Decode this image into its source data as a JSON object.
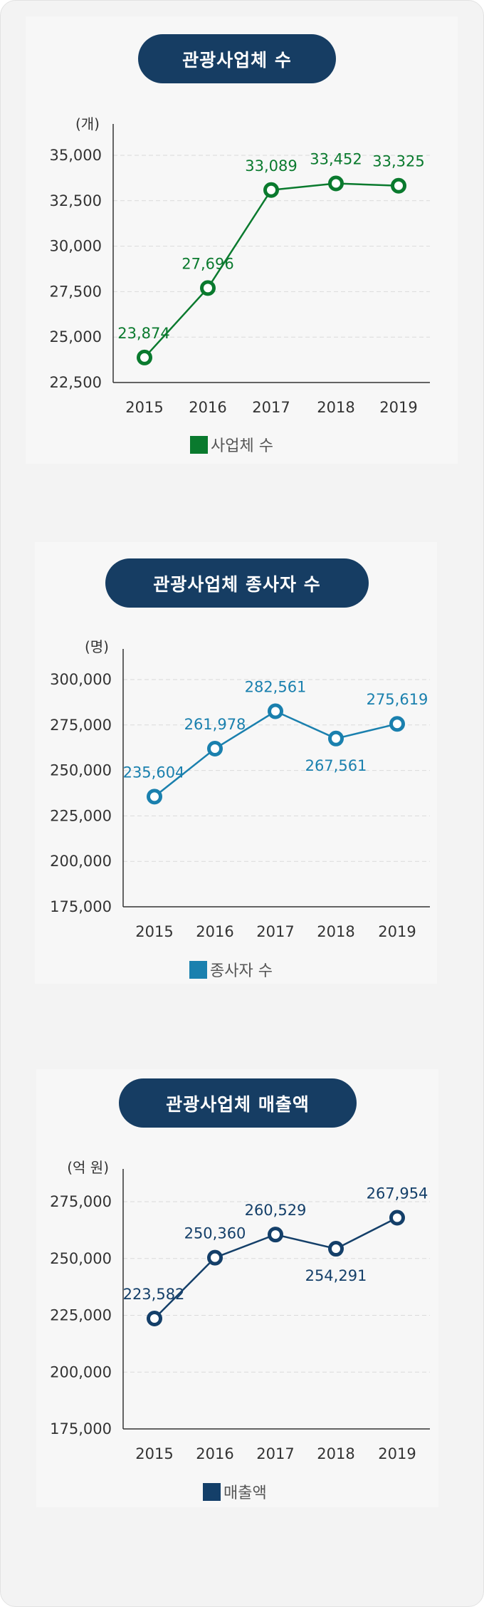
{
  "chart_data": [
    {
      "type": "line",
      "title": "관광사업체 수",
      "unit": "(개)",
      "categories": [
        "2015",
        "2016",
        "2017",
        "2018",
        "2019"
      ],
      "series": [
        {
          "name": "사업체 수",
          "values": [
            23874,
            27696,
            33089,
            33452,
            33325
          ],
          "labels": [
            "23,874",
            "27,696",
            "33,089",
            "33,452",
            "33,325"
          ],
          "color": "#0a7a2e"
        }
      ],
      "yticks": [
        "22,500",
        "25,000",
        "27,500",
        "30,000",
        "32,500",
        "35,000"
      ],
      "ylim": [
        22500,
        35000
      ],
      "grid": true,
      "legend": "bottom"
    },
    {
      "type": "line",
      "title": "관광사업체 종사자 수",
      "unit": "(명)",
      "categories": [
        "2015",
        "2016",
        "2017",
        "2018",
        "2019"
      ],
      "series": [
        {
          "name": "종사자 수",
          "values": [
            235604,
            261978,
            282561,
            267561,
            275619
          ],
          "labels": [
            "235,604",
            "261,978",
            "282,561",
            "267,561",
            "275,619"
          ],
          "color": "#1a80ae"
        }
      ],
      "yticks": [
        "175,000",
        "200,000",
        "225,000",
        "250,000",
        "275,000",
        "300,000"
      ],
      "ylim": [
        175000,
        300000
      ],
      "grid": true,
      "legend": "bottom"
    },
    {
      "type": "line",
      "title": "관광사업체 매출액",
      "unit": "(억 원)",
      "categories": [
        "2015",
        "2016",
        "2017",
        "2018",
        "2019"
      ],
      "series": [
        {
          "name": "매출액",
          "values": [
            223582,
            250360,
            260529,
            254291,
            267954
          ],
          "labels": [
            "223,582",
            "250,360",
            "260,529",
            "254,291",
            "267,954"
          ],
          "color": "#143f69"
        }
      ],
      "yticks": [
        "175,000",
        "200,000",
        "225,000",
        "250,000",
        "275,000"
      ],
      "ylim": [
        175000,
        275000
      ],
      "grid": true,
      "legend": "bottom"
    }
  ]
}
